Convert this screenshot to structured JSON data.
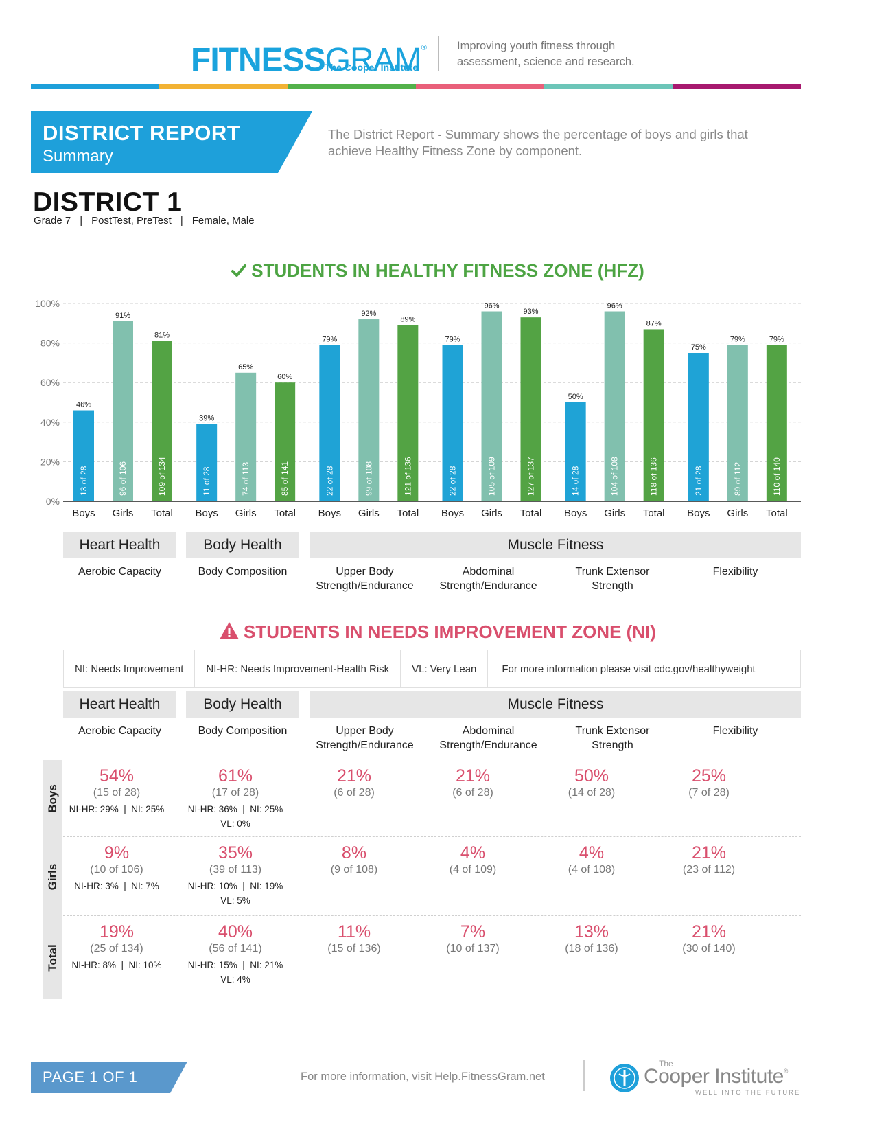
{
  "header": {
    "logo_bold": "FITNESS",
    "logo_light": "GRAM",
    "logo_mark": "®",
    "logo_sub": "The Cooper Institute",
    "tagline_line1": "Improving youth fitness through",
    "tagline_line2": "assessment, science and research.",
    "colorbar": [
      "#1ea0da",
      "#f2b233",
      "#53b14a",
      "#e9607a",
      "#6cc5b8",
      "#a7196f"
    ]
  },
  "report": {
    "title": "DISTRICT REPORT",
    "subtitle": "Summary",
    "description": "The District Report - Summary shows the percentage of boys and girls that achieve Healthy Fitness Zone by component.",
    "district": "DISTRICT 1",
    "filters": {
      "grade": "Grade 7",
      "tests": "PostTest, PreTest",
      "genders": "Female, Male",
      "separator": "|"
    }
  },
  "hfz": {
    "title": "STUDENTS IN HEALTHY FITNESS ZONE (HFZ)",
    "check_icon_color": "#4da443"
  },
  "chart_data": {
    "type": "bar",
    "yticks": [
      "0%",
      "20%",
      "40%",
      "60%",
      "80%",
      "100%"
    ],
    "ylim": [
      0,
      100
    ],
    "grid": true,
    "series_colors": {
      "Boys": "#1fa3d6",
      "Girls": "#81c0ae",
      "Total": "#53a344"
    },
    "groups": [
      {
        "component": "Aerobic Capacity",
        "bars": [
          {
            "label": "Boys",
            "value": 46,
            "value_label": "46%",
            "count": "13 of 28"
          },
          {
            "label": "Girls",
            "value": 91,
            "value_label": "91%",
            "count": "96 of 106"
          },
          {
            "label": "Total",
            "value": 81,
            "value_label": "81%",
            "count": "109 of 134"
          }
        ]
      },
      {
        "component": "Body Composition",
        "bars": [
          {
            "label": "Boys",
            "value": 39,
            "value_label": "39%",
            "count": "11 of 28"
          },
          {
            "label": "Girls",
            "value": 65,
            "value_label": "65%",
            "count": "74 of 113"
          },
          {
            "label": "Total",
            "value": 60,
            "value_label": "60%",
            "count": "85 of 141"
          }
        ]
      },
      {
        "component": "Upper Body Strength/Endurance",
        "bars": [
          {
            "label": "Boys",
            "value": 79,
            "value_label": "79%",
            "count": "22 of 28"
          },
          {
            "label": "Girls",
            "value": 92,
            "value_label": "92%",
            "count": "99 of 108"
          },
          {
            "label": "Total",
            "value": 89,
            "value_label": "89%",
            "count": "121 of 136"
          }
        ]
      },
      {
        "component": "Abdominal Strength/Endurance",
        "bars": [
          {
            "label": "Boys",
            "value": 79,
            "value_label": "79%",
            "count": "22 of 28"
          },
          {
            "label": "Girls",
            "value": 96,
            "value_label": "96%",
            "count": "105 of 109"
          },
          {
            "label": "Total",
            "value": 93,
            "value_label": "93%",
            "count": "127 of 137"
          }
        ]
      },
      {
        "component": "Trunk Extensor Strength",
        "bars": [
          {
            "label": "Boys",
            "value": 50,
            "value_label": "50%",
            "count": "14 of 28"
          },
          {
            "label": "Girls",
            "value": 96,
            "value_label": "96%",
            "count": "104 of 108"
          },
          {
            "label": "Total",
            "value": 87,
            "value_label": "87%",
            "count": "118 of 136"
          }
        ]
      },
      {
        "component": "Flexibility",
        "bars": [
          {
            "label": "Boys",
            "value": 75,
            "value_label": "75%",
            "count": "21 of 28"
          },
          {
            "label": "Girls",
            "value": 79,
            "value_label": "79%",
            "count": "89 of 112"
          },
          {
            "label": "Total",
            "value": 79,
            "value_label": "79%",
            "count": "110 of 140"
          }
        ]
      }
    ]
  },
  "categories": {
    "heart": "Heart Health",
    "body": "Body Health",
    "muscle": "Muscle Fitness",
    "components": {
      "aerobic": "Aerobic Capacity",
      "bodycomp": "Body Composition",
      "upper_1": "Upper Body",
      "upper_2": "Strength/Endurance",
      "abdominal_1": "Abdominal",
      "abdominal_2": "Strength/Endurance",
      "trunk_1": "Trunk Extensor",
      "trunk_2": "Strength",
      "flex": "Flexibility"
    }
  },
  "ni": {
    "title": "STUDENTS IN NEEDS IMPROVEMENT ZONE (NI)",
    "warning_icon_color": "#d94f6d",
    "legend": [
      "NI: Needs Improvement",
      "NI-HR: Needs Improvement-Health Risk",
      "VL: Very Lean",
      "For more information please visit cdc.gov/healthyweight"
    ],
    "rows": [
      {
        "label": "Boys",
        "cells": [
          {
            "pct": "54%",
            "count": "(15 of 28)",
            "detail": "NI-HR: 29%  |  NI: 25%"
          },
          {
            "pct": "61%",
            "count": "(17 of 28)",
            "detail": "NI-HR: 36%  |  NI: 25%",
            "vl": "VL: 0%"
          },
          {
            "pct": "21%",
            "count": "(6 of 28)"
          },
          {
            "pct": "21%",
            "count": "(6 of 28)"
          },
          {
            "pct": "50%",
            "count": "(14 of 28)"
          },
          {
            "pct": "25%",
            "count": "(7 of 28)"
          }
        ]
      },
      {
        "label": "Girls",
        "cells": [
          {
            "pct": "9%",
            "count": "(10 of 106)",
            "detail": "NI-HR: 3%  |  NI: 7%"
          },
          {
            "pct": "35%",
            "count": "(39 of 113)",
            "detail": "NI-HR: 10%  |  NI: 19%",
            "vl": "VL: 5%"
          },
          {
            "pct": "8%",
            "count": "(9 of 108)"
          },
          {
            "pct": "4%",
            "count": "(4 of 109)"
          },
          {
            "pct": "4%",
            "count": "(4 of 108)"
          },
          {
            "pct": "21%",
            "count": "(23 of 112)"
          }
        ]
      },
      {
        "label": "Total",
        "cells": [
          {
            "pct": "19%",
            "count": "(25 of 134)",
            "detail": "NI-HR: 8%  |  NI: 10%"
          },
          {
            "pct": "40%",
            "count": "(56 of 141)",
            "detail": "NI-HR: 15%  |  NI: 21%",
            "vl": "VL: 4%"
          },
          {
            "pct": "11%",
            "count": "(15 of 136)"
          },
          {
            "pct": "7%",
            "count": "(10 of 137)"
          },
          {
            "pct": "13%",
            "count": "(18 of 136)"
          },
          {
            "pct": "21%",
            "count": "(30 of 140)"
          }
        ]
      }
    ]
  },
  "footer": {
    "page": "PAGE 1 OF 1",
    "info": "For more information, visit Help.FitnessGram.net",
    "cooper_small": "The",
    "cooper_name": "Cooper Institute",
    "cooper_mark": "®",
    "cooper_slogan": "WELL INTO THE FUTURE"
  }
}
